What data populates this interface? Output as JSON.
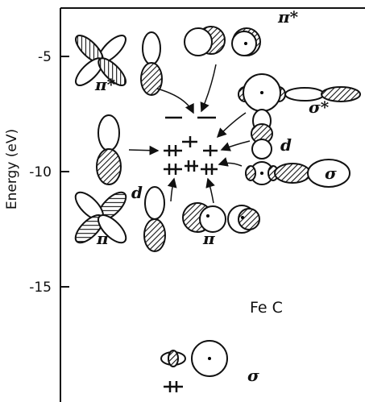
{
  "axis": {
    "label": "Energy (eV)",
    "ylim": [
      -20,
      -2.9
    ],
    "ticks": [
      -5,
      -10,
      -15
    ]
  },
  "labels": {
    "pi_star_left": "π*",
    "pi_star_top": "π*",
    "sigma_star": "σ*",
    "d_right": "d",
    "d_left": "d",
    "sigma_mid": "σ",
    "pi_left": "π",
    "pi_mid": "π",
    "molecule": "Fe C",
    "sigma_low": "σ"
  }
}
